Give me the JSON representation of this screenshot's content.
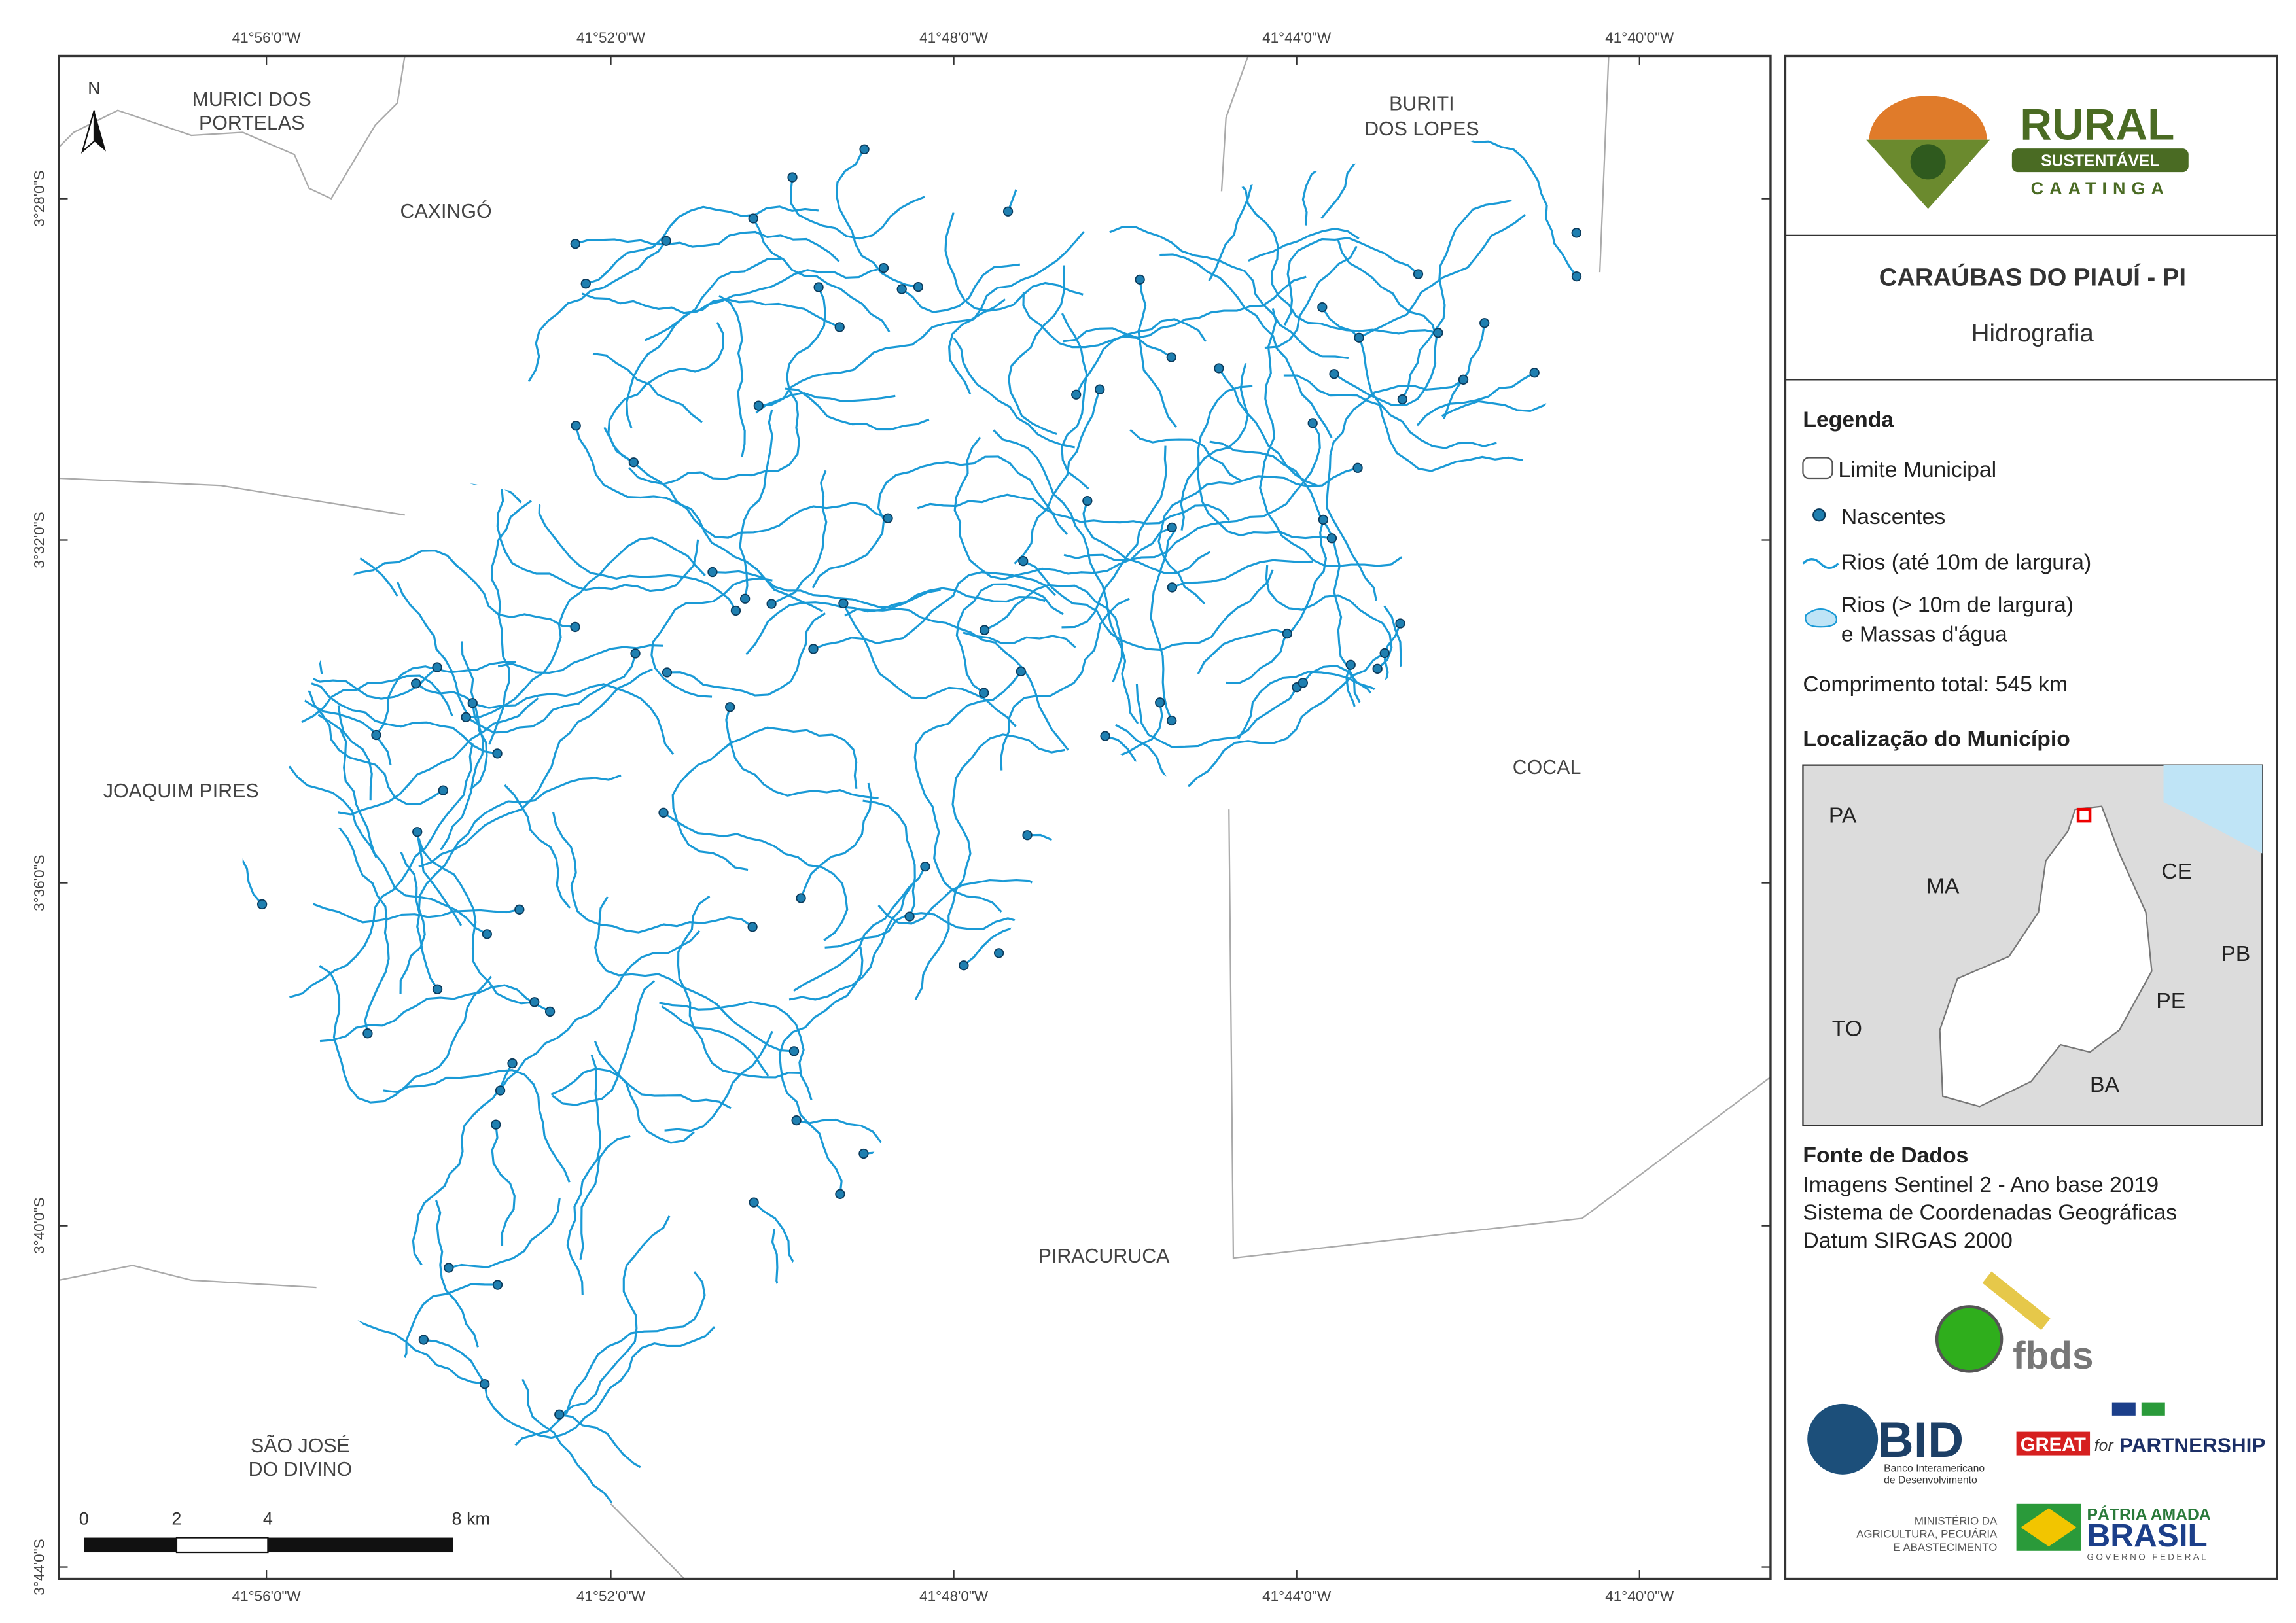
{
  "map": {
    "coords_x": [
      "41°56'0\"W",
      "41°52'0\"W",
      "41°48'0\"W",
      "41°44'0\"W",
      "41°40'0\"W"
    ],
    "coords_y": [
      "3°28'0\"S",
      "3°32'0\"S",
      "3°36'0\"S",
      "3°40'0\"S",
      "3°44'0\"S"
    ],
    "north": "N",
    "places": [
      [
        "MURICI DOS",
        "PORTELAS"
      ],
      [
        "CAXINGÓ"
      ],
      [
        "BURITI",
        "DOS LOPES"
      ],
      [
        "JOAQUIM PIRES"
      ],
      [
        "COCAL"
      ],
      [
        "PIRACURUCA"
      ],
      [
        "SÃO JOSÉ",
        "DO DIVINO"
      ]
    ],
    "scale_labels": [
      "0",
      "2",
      "4",
      "8 km"
    ]
  },
  "panel": {
    "logo": {
      "rural": "RURAL",
      "sustentavel": "SUSTENTÁVEL",
      "caatinga": "CAATINGA"
    },
    "title": "CARAÚBAS DO PIAUÍ - PI",
    "subtitle": "Hidrografia",
    "legend": {
      "title": "Legenda",
      "items": [
        "Limite Municipal",
        "Nascentes",
        "Rios (até 10m de largura)",
        "Rios (> 10m de largura)",
        "e Massas d'água"
      ],
      "total": "Comprimento total:  545 km"
    },
    "location": {
      "title": "Localização do Município",
      "states": [
        "PA",
        "MA",
        "CE",
        "PB",
        "PE",
        "TO",
        "BA"
      ]
    },
    "sources": {
      "title": "Fonte de Dados",
      "lines": [
        "Imagens Sentinel 2 - Ano base 2019",
        "Sistema de Coordenadas Geográficas",
        "Datum SIRGAS 2000"
      ]
    },
    "logos": {
      "fbds": "fbds",
      "bid": "BID",
      "bid_sub": [
        "Banco Interamericano",
        "de Desenvolvimento"
      ],
      "great": "GREAT",
      "for": "for",
      "partnership": "PARTNERSHIP",
      "ministry": [
        "MINISTÉRIO DA",
        "AGRICULTURA, PECUÁRIA",
        "E ABASTECIMENTO"
      ],
      "patria": "PÁTRIA AMADA",
      "brasil": "BRASIL",
      "governo": "GOVERNO FEDERAL"
    }
  }
}
